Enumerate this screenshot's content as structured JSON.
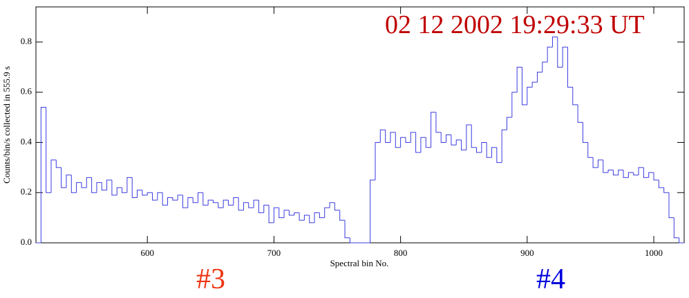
{
  "chart_data": {
    "type": "step",
    "title": "02 12 2002   19:29:33 UT",
    "xlabel": "Spectral bin No.",
    "ylabel": "Counts/bin/s collected in   555.9 s",
    "annotations": [
      "#3",
      "#4"
    ],
    "color": "#3a3ae0",
    "x": [
      512,
      516,
      520,
      524,
      528,
      532,
      536,
      540,
      544,
      548,
      552,
      556,
      560,
      564,
      568,
      572,
      576,
      580,
      584,
      588,
      592,
      596,
      600,
      604,
      608,
      612,
      616,
      620,
      624,
      628,
      632,
      636,
      640,
      644,
      648,
      652,
      656,
      660,
      664,
      668,
      672,
      676,
      680,
      684,
      688,
      692,
      696,
      700,
      704,
      708,
      712,
      716,
      720,
      724,
      728,
      732,
      736,
      740,
      744,
      748,
      752,
      756,
      760,
      764,
      768,
      772,
      776,
      780,
      784,
      788,
      792,
      796,
      800,
      804,
      808,
      812,
      816,
      820,
      824,
      828,
      832,
      836,
      840,
      844,
      848,
      852,
      856,
      860,
      864,
      868,
      872,
      876,
      880,
      884,
      888,
      892,
      896,
      900,
      904,
      908,
      912,
      916,
      920,
      924,
      928,
      932,
      936,
      940,
      944,
      948,
      952,
      956,
      960,
      964,
      968,
      972,
      976,
      980,
      984,
      988,
      992,
      996,
      1000,
      1004,
      1008,
      1012,
      1016,
      1020
    ],
    "values": [
      0.0,
      0.54,
      0.2,
      0.33,
      0.3,
      0.22,
      0.27,
      0.2,
      0.24,
      0.22,
      0.26,
      0.2,
      0.24,
      0.21,
      0.25,
      0.19,
      0.22,
      0.2,
      0.26,
      0.18,
      0.21,
      0.19,
      0.2,
      0.17,
      0.2,
      0.15,
      0.18,
      0.17,
      0.19,
      0.14,
      0.18,
      0.16,
      0.2,
      0.15,
      0.17,
      0.16,
      0.14,
      0.17,
      0.15,
      0.18,
      0.13,
      0.16,
      0.14,
      0.17,
      0.12,
      0.15,
      0.08,
      0.14,
      0.1,
      0.13,
      0.11,
      0.12,
      0.09,
      0.11,
      0.08,
      0.12,
      0.1,
      0.14,
      0.16,
      0.13,
      0.09,
      0.02,
      0.0,
      0.0,
      0.0,
      0.0,
      0.25,
      0.4,
      0.45,
      0.4,
      0.44,
      0.38,
      0.42,
      0.4,
      0.44,
      0.36,
      0.42,
      0.38,
      0.52,
      0.44,
      0.4,
      0.43,
      0.39,
      0.41,
      0.37,
      0.47,
      0.38,
      0.36,
      0.4,
      0.34,
      0.38,
      0.32,
      0.45,
      0.5,
      0.6,
      0.7,
      0.55,
      0.62,
      0.64,
      0.68,
      0.72,
      0.78,
      0.82,
      0.7,
      0.78,
      0.62,
      0.55,
      0.48,
      0.4,
      0.34,
      0.3,
      0.33,
      0.28,
      0.29,
      0.27,
      0.29,
      0.26,
      0.28,
      0.27,
      0.3,
      0.26,
      0.28,
      0.25,
      0.22,
      0.2,
      0.1,
      0.02,
      0.0
    ],
    "bin_width": 4,
    "xlim": [
      512,
      1024
    ],
    "xticks": [
      600,
      700,
      800,
      900,
      1000
    ],
    "ylim": [
      0,
      0.94
    ],
    "yticks": [
      {
        "value": 0,
        "label": "0.0"
      },
      0.2,
      0.4,
      0.6,
      0.8
    ]
  }
}
